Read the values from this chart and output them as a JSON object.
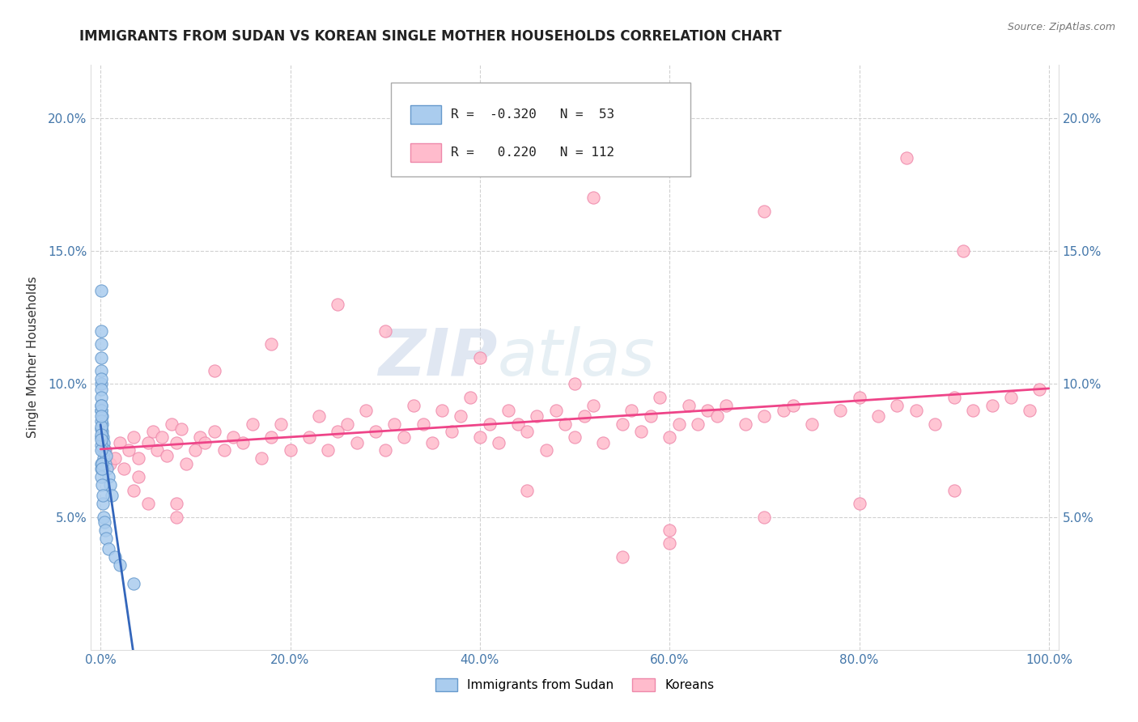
{
  "title": "IMMIGRANTS FROM SUDAN VS KOREAN SINGLE MOTHER HOUSEHOLDS CORRELATION CHART",
  "source": "Source: ZipAtlas.com",
  "ylabel": "Single Mother Households",
  "x_tick_labels": [
    "0.0%",
    "20.0%",
    "40.0%",
    "60.0%",
    "80.0%",
    "100.0%"
  ],
  "x_tick_values": [
    0,
    20,
    40,
    60,
    80,
    100
  ],
  "y_tick_labels_left": [
    "5.0%",
    "10.0%",
    "15.0%",
    "20.0%"
  ],
  "y_tick_labels_right": [
    "5.0%",
    "10.0%",
    "15.0%",
    "20.0%"
  ],
  "y_tick_values": [
    5,
    10,
    15,
    20
  ],
  "xlim": [
    -1,
    101
  ],
  "ylim": [
    0,
    22
  ],
  "legend_labels_bottom": [
    "Immigrants from Sudan",
    "Koreans"
  ],
  "legend_r_sudan": "-0.320",
  "legend_n_sudan": "53",
  "legend_r_korean": "0.220",
  "legend_n_korean": "112",
  "color_sudan_fill": "#aaccee",
  "color_sudan_edge": "#6699cc",
  "color_korean_fill": "#ffbbcc",
  "color_korean_edge": "#ee88aa",
  "color_sudan_line": "#3366bb",
  "color_korean_line": "#ee4488",
  "color_dash_extend": "#bbbbcc",
  "watermark_zip": "#c8d4e8",
  "watermark_atlas": "#c8dce8",
  "sudan_scatter_x": [
    0.05,
    0.05,
    0.05,
    0.05,
    0.05,
    0.05,
    0.08,
    0.08,
    0.1,
    0.1,
    0.1,
    0.12,
    0.15,
    0.18,
    0.2,
    0.2,
    0.25,
    0.3,
    0.3,
    0.4,
    0.5,
    0.6,
    0.7,
    0.8,
    1.0,
    1.2,
    0.05,
    0.05,
    0.05,
    0.05,
    0.05,
    0.05,
    0.06,
    0.06,
    0.07,
    0.07,
    0.08,
    0.09,
    0.1,
    0.1,
    0.12,
    0.15,
    0.18,
    0.2,
    0.25,
    0.3,
    0.4,
    0.5,
    0.6,
    0.8,
    1.5,
    2.0,
    3.5
  ],
  "sudan_scatter_y": [
    13.5,
    12.0,
    11.5,
    11.0,
    10.5,
    10.0,
    10.2,
    9.8,
    9.5,
    9.2,
    9.0,
    8.8,
    8.5,
    8.2,
    8.0,
    7.8,
    7.5,
    7.8,
    7.2,
    7.5,
    7.0,
    7.3,
    6.8,
    6.5,
    6.2,
    5.8,
    8.3,
    8.0,
    7.7,
    7.5,
    7.0,
    6.8,
    9.0,
    8.6,
    9.2,
    8.4,
    8.8,
    8.1,
    7.9,
    6.5,
    7.0,
    6.8,
    6.2,
    5.5,
    5.8,
    5.0,
    4.8,
    4.5,
    4.2,
    3.8,
    3.5,
    3.2,
    2.5
  ],
  "korean_scatter_x": [
    0.5,
    1.0,
    1.5,
    2.0,
    2.5,
    3.0,
    3.5,
    4.0,
    5.0,
    5.5,
    6.0,
    6.5,
    7.0,
    7.5,
    8.0,
    8.5,
    9.0,
    10.0,
    10.5,
    11.0,
    12.0,
    13.0,
    14.0,
    15.0,
    16.0,
    17.0,
    18.0,
    19.0,
    20.0,
    22.0,
    23.0,
    24.0,
    25.0,
    26.0,
    27.0,
    28.0,
    29.0,
    30.0,
    31.0,
    32.0,
    33.0,
    34.0,
    35.0,
    36.0,
    37.0,
    38.0,
    39.0,
    40.0,
    41.0,
    42.0,
    43.0,
    44.0,
    45.0,
    46.0,
    47.0,
    48.0,
    49.0,
    50.0,
    51.0,
    52.0,
    53.0,
    55.0,
    56.0,
    57.0,
    58.0,
    59.0,
    60.0,
    61.0,
    62.0,
    63.0,
    64.0,
    65.0,
    66.0,
    68.0,
    70.0,
    72.0,
    73.0,
    75.0,
    78.0,
    80.0,
    82.0,
    84.0,
    86.0,
    88.0,
    90.0,
    92.0,
    94.0,
    96.0,
    98.0,
    99.0,
    4.0,
    3.5,
    8.0,
    45.0,
    52.0,
    70.0,
    85.0,
    91.0,
    55.0,
    60.0,
    30.0,
    25.0,
    18.0,
    12.0,
    8.0,
    5.0,
    40.0,
    50.0,
    60.0,
    70.0,
    80.0,
    90.0
  ],
  "korean_scatter_y": [
    7.5,
    7.0,
    7.2,
    7.8,
    6.8,
    7.5,
    8.0,
    7.2,
    7.8,
    8.2,
    7.5,
    8.0,
    7.3,
    8.5,
    7.8,
    8.3,
    7.0,
    7.5,
    8.0,
    7.8,
    8.2,
    7.5,
    8.0,
    7.8,
    8.5,
    7.2,
    8.0,
    8.5,
    7.5,
    8.0,
    8.8,
    7.5,
    8.2,
    8.5,
    7.8,
    9.0,
    8.2,
    7.5,
    8.5,
    8.0,
    9.2,
    8.5,
    7.8,
    9.0,
    8.2,
    8.8,
    9.5,
    8.0,
    8.5,
    7.8,
    9.0,
    8.5,
    8.2,
    8.8,
    7.5,
    9.0,
    8.5,
    8.0,
    8.8,
    9.2,
    7.8,
    8.5,
    9.0,
    8.2,
    8.8,
    9.5,
    8.0,
    8.5,
    9.2,
    8.5,
    9.0,
    8.8,
    9.2,
    8.5,
    8.8,
    9.0,
    9.2,
    8.5,
    9.0,
    9.5,
    8.8,
    9.2,
    9.0,
    8.5,
    9.5,
    9.0,
    9.2,
    9.5,
    9.0,
    9.8,
    6.5,
    6.0,
    5.5,
    6.0,
    17.0,
    16.5,
    18.5,
    15.0,
    3.5,
    4.0,
    12.0,
    13.0,
    11.5,
    10.5,
    5.0,
    5.5,
    11.0,
    10.0,
    4.5,
    5.0,
    5.5,
    6.0
  ]
}
